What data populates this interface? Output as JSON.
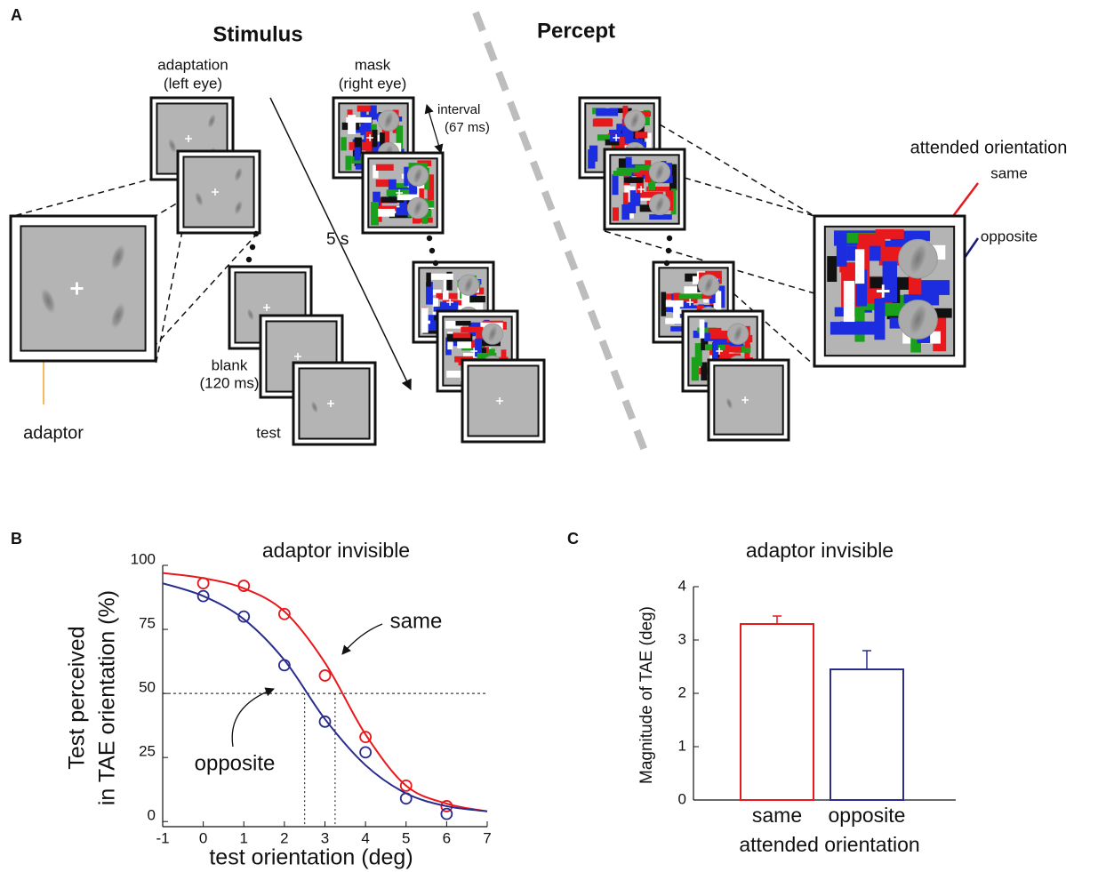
{
  "panel_a": {
    "label": "A",
    "stimulus_title": "Stimulus",
    "percept_title": "Percept",
    "adaptation": [
      "adaptation",
      "(left eye)"
    ],
    "mask": [
      "mask",
      "(right eye)"
    ],
    "interval": [
      "interval",
      "(67 ms)"
    ],
    "duration": "5 s",
    "blank": [
      "blank",
      "(120 ms)"
    ],
    "test": "test",
    "adaptor": "adaptor",
    "attended_orientation": "attended orientation",
    "same": "same",
    "opposite": "opposite"
  },
  "chart_data": [
    {
      "type": "line",
      "panel_label": "B",
      "title": "adaptor invisible",
      "ylabel": [
        "Test perceived",
        "in TAE orientation   (%)"
      ],
      "xlabel": "test orientation (deg)",
      "x": [
        0,
        1,
        2,
        3,
        4,
        5,
        6
      ],
      "series": [
        {
          "name": "same",
          "color": "#e8191c",
          "values": [
            93,
            92,
            81,
            57,
            33,
            14,
            6
          ],
          "fit_x": [
            -1,
            0,
            1,
            2,
            3,
            4,
            5,
            6,
            7
          ],
          "fit_values": [
            97,
            95,
            91,
            82,
            62,
            34,
            14,
            7,
            4
          ]
        },
        {
          "name": "opposite",
          "color": "#2b2d8e",
          "values": [
            88,
            80,
            61,
            39,
            27,
            9,
            3
          ],
          "fit_x": [
            -1,
            0,
            1,
            2,
            3,
            4,
            5,
            6,
            7
          ],
          "fit_values": [
            93,
            88,
            79,
            63,
            40,
            22,
            11,
            6,
            4
          ]
        }
      ],
      "xlim": [
        -1,
        7
      ],
      "xticks": [
        -1,
        0,
        1,
        2,
        3,
        4,
        5,
        6,
        7
      ],
      "ylim": [
        -2,
        100
      ],
      "yticks": [
        0,
        25,
        50,
        75,
        100
      ],
      "reference_y": 50,
      "reference_x": [
        2.5,
        3.25
      ]
    },
    {
      "type": "bar",
      "panel_label": "C",
      "title": "adaptor invisible",
      "ylabel": "Magnitude of TAE (deg)",
      "xlabel": "attended orientation",
      "categories": [
        "same",
        "opposite"
      ],
      "values": [
        3.3,
        2.45
      ],
      "errors": [
        0.15,
        0.35
      ],
      "colors": [
        "#e8191c",
        "#2b2d8e"
      ],
      "ylim": [
        0,
        4
      ],
      "yticks": [
        0,
        1,
        2,
        3,
        4
      ]
    }
  ]
}
